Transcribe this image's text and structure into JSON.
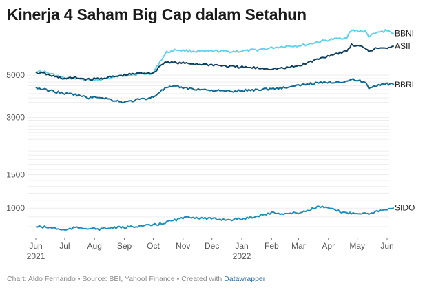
{
  "title": "Kinerja 4 Saham Big Cap dalam Setahun",
  "footer": {
    "prefix": "Chart: Aldo Fernando • Source: BEI, Yahoo! Finance • Created with ",
    "link": "Datawrapper"
  },
  "chart_data": {
    "type": "line",
    "title": "Kinerja 4 Saham Big Cap dalam Setahun",
    "x_ticks": [
      {
        "date": "2021-06-01",
        "label": "Jun",
        "year": "2021"
      },
      {
        "date": "2021-07-01",
        "label": "Jul",
        "year": ""
      },
      {
        "date": "2021-08-01",
        "label": "Aug",
        "year": ""
      },
      {
        "date": "2021-09-01",
        "label": "Sep",
        "year": ""
      },
      {
        "date": "2021-10-01",
        "label": "Oct",
        "year": ""
      },
      {
        "date": "2021-11-01",
        "label": "Nov",
        "year": ""
      },
      {
        "date": "2021-12-01",
        "label": "Dec",
        "year": ""
      },
      {
        "date": "2022-01-01",
        "label": "Jan",
        "year": "2022"
      },
      {
        "date": "2022-02-01",
        "label": "Feb",
        "year": ""
      },
      {
        "date": "2022-03-01",
        "label": "Mar",
        "year": ""
      },
      {
        "date": "2022-04-01",
        "label": "Apr",
        "year": ""
      },
      {
        "date": "2022-05-01",
        "label": "May",
        "year": ""
      },
      {
        "date": "2022-06-01",
        "label": "Jun",
        "year": ""
      }
    ],
    "y_scale": "log",
    "y_tick_labels": [
      5000,
      3000,
      1500,
      1000
    ],
    "grid": true,
    "series": [
      {
        "name": "BBNI",
        "color": "#5fd3ea",
        "points": [
          [
            "2021-06-01",
            5250
          ],
          [
            "2021-06-10",
            5200
          ],
          [
            "2021-06-21",
            5000
          ],
          [
            "2021-07-01",
            4800
          ],
          [
            "2021-07-12",
            4820
          ],
          [
            "2021-07-26",
            4700
          ],
          [
            "2021-08-06",
            4750
          ],
          [
            "2021-08-20",
            4850
          ],
          [
            "2021-09-01",
            5000
          ],
          [
            "2021-09-13",
            5050
          ],
          [
            "2021-09-27",
            5100
          ],
          [
            "2021-10-01",
            5150
          ],
          [
            "2021-10-08",
            5900
          ],
          [
            "2021-10-15",
            6600
          ],
          [
            "2021-10-25",
            6800
          ],
          [
            "2021-11-08",
            6700
          ],
          [
            "2021-11-22",
            6650
          ],
          [
            "2021-12-06",
            6700
          ],
          [
            "2021-12-20",
            6650
          ],
          [
            "2022-01-03",
            6700
          ],
          [
            "2022-01-17",
            6800
          ],
          [
            "2022-02-01",
            6950
          ],
          [
            "2022-02-15",
            7100
          ],
          [
            "2022-03-01",
            7150
          ],
          [
            "2022-03-10",
            7250
          ],
          [
            "2022-03-22",
            7500
          ],
          [
            "2022-04-04",
            7700
          ],
          [
            "2022-04-20",
            7900
          ],
          [
            "2022-04-25",
            8600
          ],
          [
            "2022-05-09",
            8500
          ],
          [
            "2022-05-13",
            8000
          ],
          [
            "2022-05-23",
            8400
          ],
          [
            "2022-06-01",
            8600
          ],
          [
            "2022-06-08",
            8300
          ]
        ]
      },
      {
        "name": "ASII",
        "color": "#0f3f5e",
        "points": [
          [
            "2021-06-01",
            5150
          ],
          [
            "2021-06-10",
            5100
          ],
          [
            "2021-06-21",
            4900
          ],
          [
            "2021-07-01",
            4800
          ],
          [
            "2021-07-12",
            4850
          ],
          [
            "2021-07-26",
            4750
          ],
          [
            "2021-08-06",
            4800
          ],
          [
            "2021-08-20",
            4900
          ],
          [
            "2021-09-01",
            5000
          ],
          [
            "2021-09-13",
            5100
          ],
          [
            "2021-09-27",
            5150
          ],
          [
            "2021-10-01",
            5100
          ],
          [
            "2021-10-08",
            5600
          ],
          [
            "2021-10-15",
            5900
          ],
          [
            "2021-10-25",
            5800
          ],
          [
            "2021-11-08",
            5750
          ],
          [
            "2021-11-22",
            5700
          ],
          [
            "2021-12-06",
            5650
          ],
          [
            "2021-12-20",
            5550
          ],
          [
            "2022-01-03",
            5500
          ],
          [
            "2022-01-17",
            5450
          ],
          [
            "2022-02-01",
            5400
          ],
          [
            "2022-02-15",
            5450
          ],
          [
            "2022-03-01",
            5600
          ],
          [
            "2022-03-10",
            5800
          ],
          [
            "2022-03-22",
            6100
          ],
          [
            "2022-04-04",
            6400
          ],
          [
            "2022-04-20",
            6700
          ],
          [
            "2022-04-25",
            7200
          ],
          [
            "2022-05-09",
            7000
          ],
          [
            "2022-05-13",
            6700
          ],
          [
            "2022-05-23",
            7000
          ],
          [
            "2022-06-01",
            7000
          ],
          [
            "2022-06-08",
            7100
          ]
        ]
      },
      {
        "name": "BBRI",
        "color": "#106a93",
        "points": [
          [
            "2021-06-01",
            4300
          ],
          [
            "2021-06-10",
            4200
          ],
          [
            "2021-06-21",
            4100
          ],
          [
            "2021-07-01",
            4000
          ],
          [
            "2021-07-12",
            3950
          ],
          [
            "2021-07-26",
            3800
          ],
          [
            "2021-08-06",
            3850
          ],
          [
            "2021-08-20",
            3700
          ],
          [
            "2021-09-01",
            3600
          ],
          [
            "2021-09-13",
            3700
          ],
          [
            "2021-09-27",
            3800
          ],
          [
            "2021-10-01",
            3850
          ],
          [
            "2021-10-08",
            4100
          ],
          [
            "2021-10-15",
            4300
          ],
          [
            "2021-10-25",
            4350
          ],
          [
            "2021-11-08",
            4250
          ],
          [
            "2021-11-22",
            4200
          ],
          [
            "2021-12-06",
            4150
          ],
          [
            "2021-12-20",
            4100
          ],
          [
            "2022-01-03",
            4150
          ],
          [
            "2022-01-17",
            4200
          ],
          [
            "2022-02-01",
            4250
          ],
          [
            "2022-02-15",
            4300
          ],
          [
            "2022-03-01",
            4400
          ],
          [
            "2022-03-10",
            4500
          ],
          [
            "2022-03-22",
            4550
          ],
          [
            "2022-04-04",
            4600
          ],
          [
            "2022-04-20",
            4650
          ],
          [
            "2022-04-25",
            4750
          ],
          [
            "2022-05-09",
            4600
          ],
          [
            "2022-05-13",
            4300
          ],
          [
            "2022-05-23",
            4450
          ],
          [
            "2022-06-01",
            4500
          ],
          [
            "2022-06-08",
            4450
          ]
        ]
      },
      {
        "name": "SIDO",
        "color": "#1a8fbf",
        "points": [
          [
            "2021-06-01",
            800
          ],
          [
            "2021-06-10",
            795
          ],
          [
            "2021-06-21",
            785
          ],
          [
            "2021-07-01",
            765
          ],
          [
            "2021-07-12",
            790
          ],
          [
            "2021-07-26",
            785
          ],
          [
            "2021-08-06",
            775
          ],
          [
            "2021-08-20",
            790
          ],
          [
            "2021-09-01",
            790
          ],
          [
            "2021-09-13",
            805
          ],
          [
            "2021-09-27",
            810
          ],
          [
            "2021-10-01",
            815
          ],
          [
            "2021-10-08",
            825
          ],
          [
            "2021-10-15",
            845
          ],
          [
            "2021-10-25",
            870
          ],
          [
            "2021-11-08",
            900
          ],
          [
            "2021-11-22",
            885
          ],
          [
            "2021-12-06",
            875
          ],
          [
            "2021-12-20",
            870
          ],
          [
            "2022-01-03",
            880
          ],
          [
            "2022-01-17",
            910
          ],
          [
            "2022-02-01",
            945
          ],
          [
            "2022-02-15",
            935
          ],
          [
            "2022-03-01",
            945
          ],
          [
            "2022-03-10",
            970
          ],
          [
            "2022-03-22",
            1020
          ],
          [
            "2022-04-04",
            990
          ],
          [
            "2022-04-20",
            940
          ],
          [
            "2022-04-25",
            945
          ],
          [
            "2022-05-09",
            940
          ],
          [
            "2022-05-13",
            940
          ],
          [
            "2022-05-23",
            970
          ],
          [
            "2022-06-01",
            975
          ],
          [
            "2022-06-08",
            1005
          ]
        ]
      }
    ]
  }
}
